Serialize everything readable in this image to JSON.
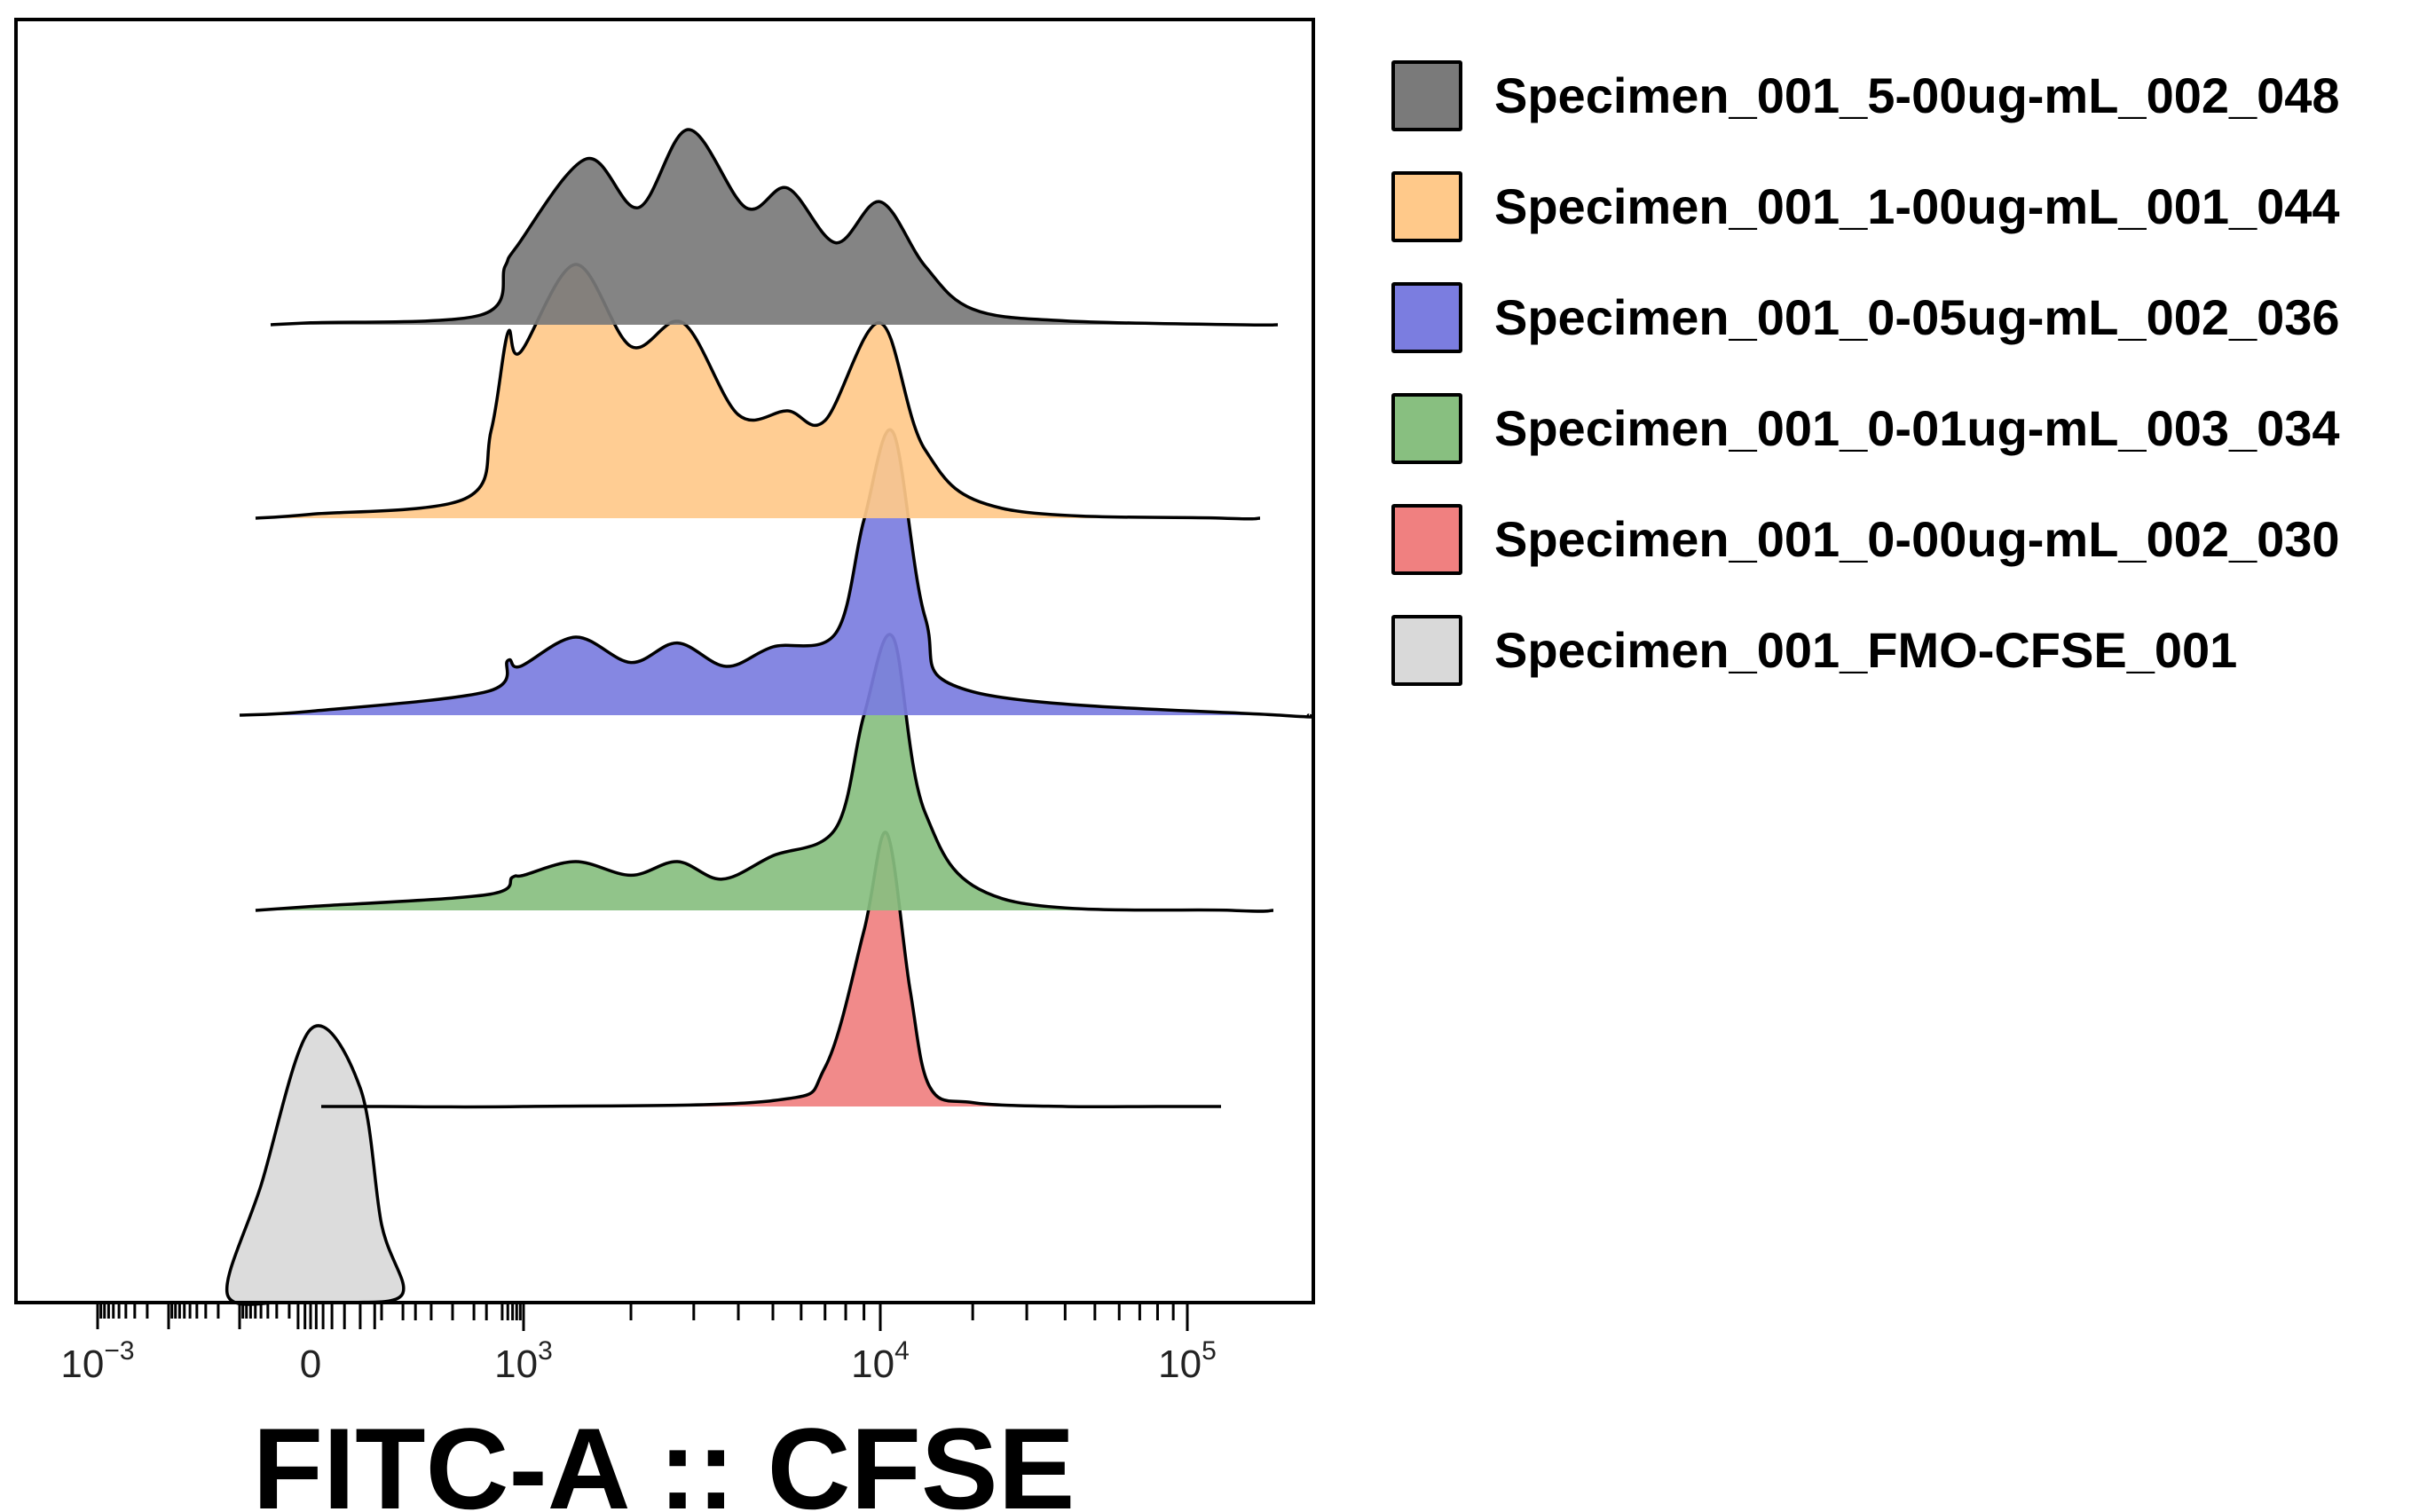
{
  "chart_data": {
    "type": "area",
    "title": "",
    "xlabel": "FITC-A :: CFSE",
    "ylabel": "",
    "x_scale": "biexponential",
    "x_ticks": [
      {
        "base": "10",
        "exp": "−3"
      },
      {
        "base": "0",
        "exp": ""
      },
      {
        "base": "10",
        "exp": "3"
      },
      {
        "base": "10",
        "exp": "4"
      },
      {
        "base": "10",
        "exp": "5"
      }
    ],
    "legend_position": "right",
    "grid": false,
    "series": [
      {
        "name": "Specimen_001_5-00ug-mL_002_048",
        "color": "#7a7a7a",
        "x": [
          -30,
          0,
          250,
          550,
          800,
          1500,
          2100,
          2900,
          4200,
          5500,
          7500,
          10000,
          14000,
          20000,
          40000,
          150000
        ],
        "y": [
          0.0,
          0.01,
          0.05,
          0.3,
          0.4,
          0.85,
          0.6,
          1.0,
          0.6,
          0.7,
          0.42,
          0.63,
          0.3,
          0.08,
          0.02,
          0.0
        ]
      },
      {
        "name": "Specimen_001_1-00ug-mL_001_044",
        "color": "#ffc98a",
        "x": [
          -60,
          0,
          150,
          350,
          600,
          900,
          1400,
          2000,
          2800,
          4000,
          5500,
          7000,
          10000,
          14000,
          25000,
          130000
        ],
        "y": [
          0.0,
          0.02,
          0.1,
          0.45,
          0.95,
          0.85,
          1.3,
          0.88,
          1.0,
          0.53,
          0.55,
          0.5,
          1.0,
          0.35,
          0.05,
          0.0
        ]
      },
      {
        "name": "Specimen_001_0-05ug-mL_002_036",
        "color": "#7b7de0",
        "x": [
          -80,
          0,
          300,
          600,
          900,
          1400,
          2000,
          2700,
          3700,
          5000,
          7500,
          9000,
          11000,
          14000,
          20000,
          200000
        ],
        "y": [
          0.0,
          0.02,
          0.12,
          0.28,
          0.25,
          0.4,
          0.27,
          0.37,
          0.25,
          0.35,
          0.42,
          1.0,
          1.45,
          0.5,
          0.12,
          0.0
        ]
      },
      {
        "name": "Specimen_001_0-01ug-mL_003_034",
        "color": "#88bf80",
        "x": [
          -60,
          0,
          300,
          700,
          1000,
          1400,
          2000,
          2700,
          3600,
          5000,
          7500,
          9000,
          11000,
          14000,
          25000,
          140000
        ],
        "y": [
          0.0,
          0.02,
          0.08,
          0.17,
          0.18,
          0.25,
          0.18,
          0.25,
          0.16,
          0.28,
          0.42,
          1.0,
          1.4,
          0.5,
          0.06,
          0.0
        ]
      },
      {
        "name": "Specimen_001_0-00ug-mL_002_030",
        "color": "#f08080",
        "x": [
          10,
          1000,
          5000,
          7000,
          9000,
          10500,
          12500,
          14500,
          20000,
          40000,
          80000
        ],
        "y": [
          0.0,
          0.0,
          0.03,
          0.2,
          0.9,
          1.4,
          0.6,
          0.1,
          0.02,
          0.0,
          0.0
        ]
      },
      {
        "name": "Specimen_001_FMO-CFSE_001",
        "color": "#d9d9d9",
        "x": [
          -30,
          -15,
          -5,
          0,
          5,
          10,
          20,
          35
        ],
        "y": [
          0.0,
          0.05,
          0.6,
          1.4,
          1.1,
          0.4,
          0.05,
          0.0
        ]
      }
    ]
  }
}
